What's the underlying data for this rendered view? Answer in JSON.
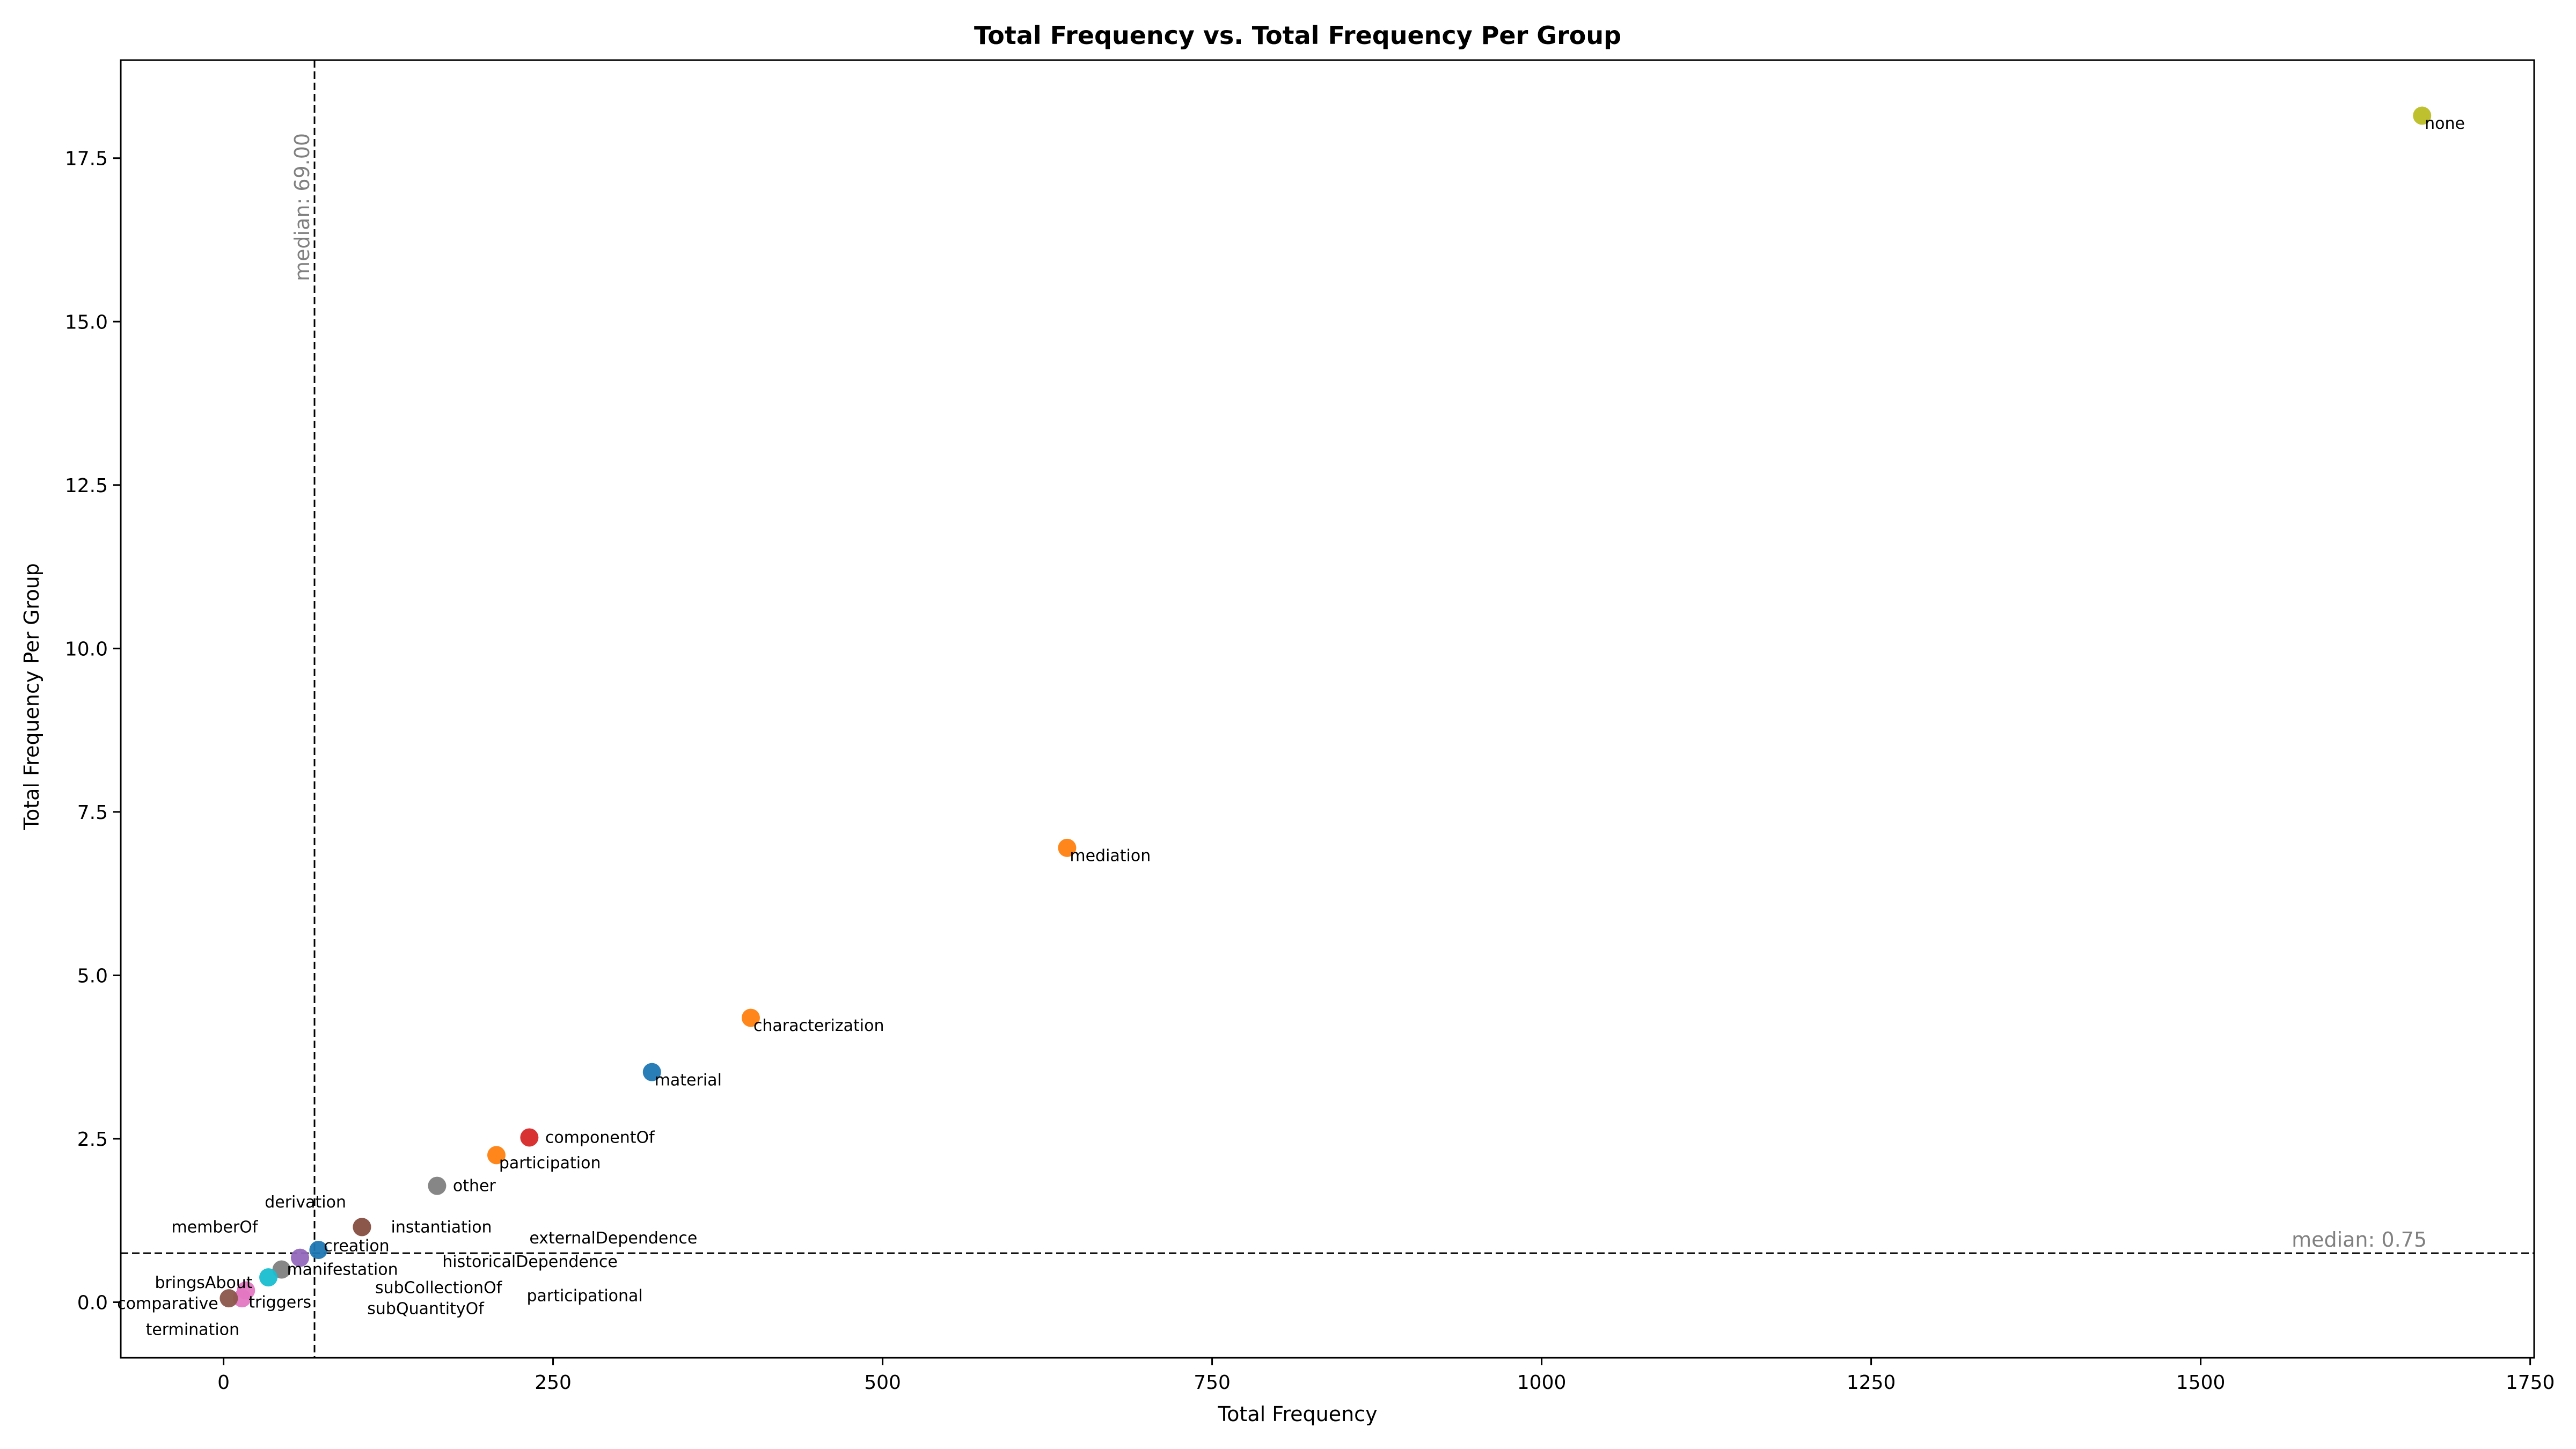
{
  "chart_data": {
    "type": "scatter",
    "title": "Total Frequency vs. Total Frequency Per Group",
    "xlabel": "Total Frequency",
    "ylabel": "Total Frequency Per Group",
    "xlim": [
      -78,
      1753
    ],
    "ylim": [
      -0.85,
      19.0
    ],
    "xticks": [
      0,
      250,
      500,
      750,
      1000,
      1250,
      1500,
      1750
    ],
    "yticks": [
      0.0,
      2.5,
      5.0,
      7.5,
      10.0,
      12.5,
      15.0,
      17.5
    ],
    "xtick_labels": [
      "0",
      "250",
      "500",
      "750",
      "1000",
      "1250",
      "1500",
      "1750"
    ],
    "ytick_labels": [
      "0.0",
      "2.5",
      "5.0",
      "7.5",
      "10.0",
      "12.5",
      "15.0",
      "17.5"
    ],
    "grid": false,
    "legend": "none",
    "medians": {
      "x": {
        "value": 69.0,
        "label": "median: 69.00"
      },
      "y": {
        "value": 0.75,
        "label": "median: 0.75"
      }
    },
    "points": [
      {
        "label": "none",
        "x": 1668,
        "y": 18.15,
        "color": "#bcbd22",
        "lx": 2,
        "ly": -0.12
      },
      {
        "label": "mediation",
        "x": 640,
        "y": 6.95,
        "color": "#ff7f0e",
        "lx": 2,
        "ly": -0.12
      },
      {
        "label": "characterization",
        "x": 400,
        "y": 4.35,
        "color": "#ff7f0e",
        "lx": 2,
        "ly": -0.12
      },
      {
        "label": "material",
        "x": 325,
        "y": 3.52,
        "color": "#1f77b4",
        "lx": 2,
        "ly": -0.12
      },
      {
        "label": "componentOf",
        "x": 232,
        "y": 2.52,
        "color": "#d62728",
        "lx": 12,
        "ly": 0.0
      },
      {
        "label": "participation",
        "x": 207,
        "y": 2.25,
        "color": "#ff7f0e",
        "lx": 2,
        "ly": -0.12
      },
      {
        "label": "other",
        "x": 162,
        "y": 1.78,
        "color": "#7f7f7f",
        "lx": 12,
        "ly": 0.0
      },
      {
        "label": "derivation",
        "x": 105,
        "y": 1.15,
        "color": "#8c564b",
        "lx": -12,
        "ly": 0.38
      },
      {
        "label": "instantiation",
        "x": 105,
        "y": 1.15,
        "color": "#8c564b",
        "lx": 22,
        "ly": 0.0
      },
      {
        "label": "memberOf",
        "x": 58,
        "y": 0.68,
        "color": "#9467bd",
        "lx": -32,
        "ly": 0.47
      },
      {
        "label": "creation",
        "x": 72,
        "y": 0.8,
        "color": "#1f77b4",
        "lx": 4,
        "ly": 0.06
      },
      {
        "label": "externalDependence",
        "x": 232,
        "y": 0.98,
        "color": "#aec7e8",
        "lx": 0,
        "ly": 0.0,
        "hidden": true
      },
      {
        "label": "historicalDependence",
        "x": 165,
        "y": 0.62,
        "color": "#98df8a",
        "lx": 0,
        "ly": 0.0,
        "hidden": true
      },
      {
        "label": "manifestation",
        "x": 44,
        "y": 0.5,
        "color": "#7f7f7f",
        "lx": 4,
        "ly": 0.0
      },
      {
        "label": "bringsAbout",
        "x": 34,
        "y": 0.38,
        "color": "#17becf",
        "lx": -12,
        "ly": -0.08
      },
      {
        "label": "subCollectionOf",
        "x": 115,
        "y": 0.2,
        "color": "#c5b0d5",
        "lx": 0,
        "ly": 0.0,
        "hidden": true
      },
      {
        "label": "participational",
        "x": 230,
        "y": 0.1,
        "color": "#c49c94",
        "lx": 0,
        "ly": 0.0,
        "hidden": true
      },
      {
        "label": "subQuantityOf",
        "x": 110,
        "y": -0.1,
        "color": "#f7b6d2",
        "lx": 0,
        "ly": 0.0,
        "hidden": true
      },
      {
        "label": "triggers",
        "x": 17,
        "y": 0.18,
        "color": "#e377c2",
        "lx": 2,
        "ly": -0.18
      },
      {
        "label": "termination",
        "x": 14,
        "y": 0.06,
        "color": "#e377c2",
        "lx": -2,
        "ly": -0.48
      },
      {
        "label": "comparative",
        "x": 4,
        "y": 0.06,
        "color": "#8c564b",
        "lx": -8,
        "ly": -0.08
      }
    ],
    "text_labels": [
      {
        "label": "externalDependence",
        "x": 232,
        "y": 0.98,
        "anchor": "start"
      },
      {
        "label": "historicalDependence",
        "x": 166,
        "y": 0.62,
        "anchor": "start"
      },
      {
        "label": "subCollectionOf",
        "x": 115,
        "y": 0.22,
        "anchor": "start"
      },
      {
        "label": "participational",
        "x": 230,
        "y": 0.1,
        "anchor": "start"
      },
      {
        "label": "subQuantityOf",
        "x": 109,
        "y": -0.1,
        "anchor": "start"
      }
    ]
  }
}
